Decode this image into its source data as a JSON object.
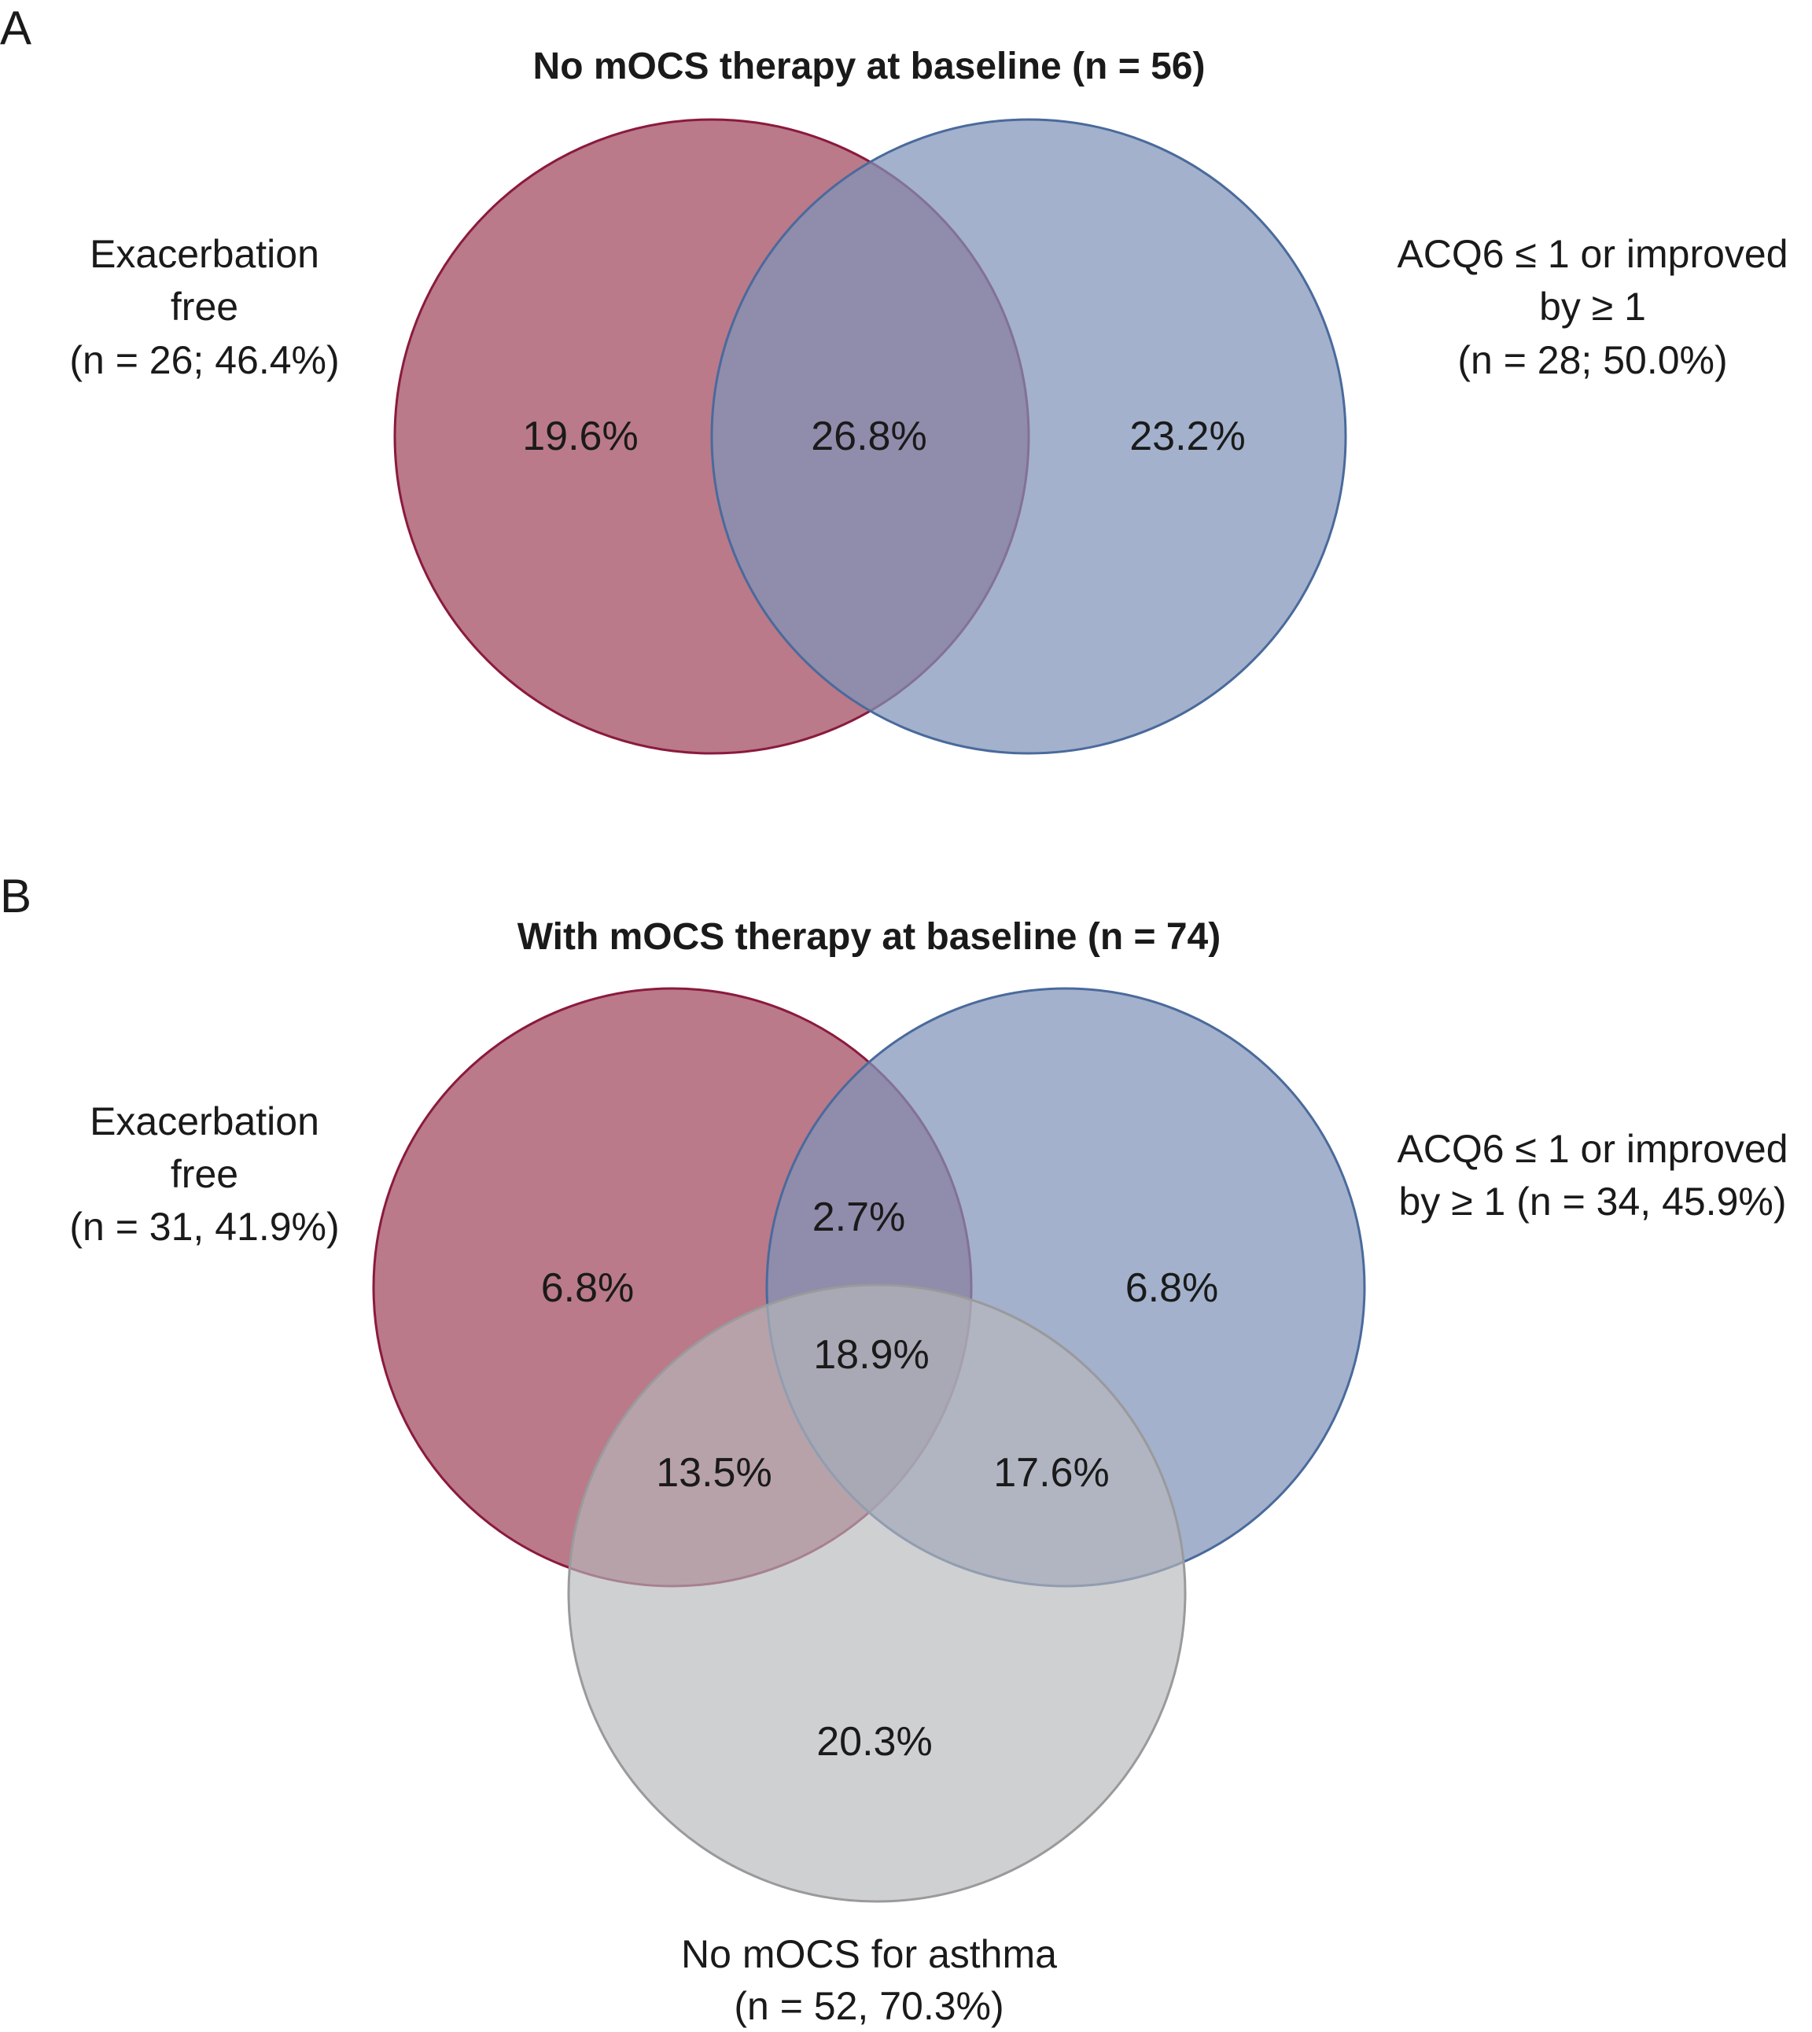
{
  "panels": [
    {
      "letter": "A",
      "title": "No mOCS therapy at baseline (n = 56)",
      "sets": [
        {
          "name": "Exacerbation free",
          "label_lines": [
            "Exacerbation",
            "free",
            "(n = 26; 46.4%)"
          ],
          "n": 26,
          "percent": 46.4,
          "fill": "#a65468",
          "stroke": "#8b1a3e"
        },
        {
          "name": "ACQ6 ≤ 1 or improved by ≥ 1",
          "label_lines": [
            "ACQ6 ≤ 1 or improved",
            "by ≥ 1",
            "(n = 28; 50.0%)"
          ],
          "n": 28,
          "percent": 50.0,
          "fill": "#8093b8",
          "stroke": "#4a6a9c"
        }
      ],
      "regions": {
        "exacerbation_only": "19.6%",
        "both": "26.8%",
        "acq6_only": "23.2%"
      }
    },
    {
      "letter": "B",
      "title": "With mOCS therapy at baseline (n = 74)",
      "sets": [
        {
          "name": "Exacerbation free",
          "label_lines": [
            "Exacerbation",
            "free",
            "(n = 31, 41.9%)"
          ],
          "n": 31,
          "percent": 41.9,
          "fill": "#a65468",
          "stroke": "#8b1a3e"
        },
        {
          "name": "ACQ6 ≤ 1 or improved by ≥ 1",
          "label_lines": [
            "ACQ6 ≤ 1 or improved",
            "by ≥ 1 (n = 34, 45.9%)"
          ],
          "n": 34,
          "percent": 45.9,
          "fill": "#8093b8",
          "stroke": "#4a6a9c"
        },
        {
          "name": "No mOCS for asthma",
          "label_lines": [
            "No mOCS for asthma",
            "(n = 52, 70.3%)"
          ],
          "n": 52,
          "percent": 70.3,
          "fill": "#b6b7bb",
          "stroke": "#9a9a9c"
        }
      ],
      "regions": {
        "exacerbation_only": "6.8%",
        "exacerbation_acq6": "2.7%",
        "acq6_only": "6.8%",
        "all_three": "18.9%",
        "exacerbation_no_mocs": "13.5%",
        "acq6_no_mocs": "17.6%",
        "no_mocs_only": "20.3%"
      }
    }
  ]
}
